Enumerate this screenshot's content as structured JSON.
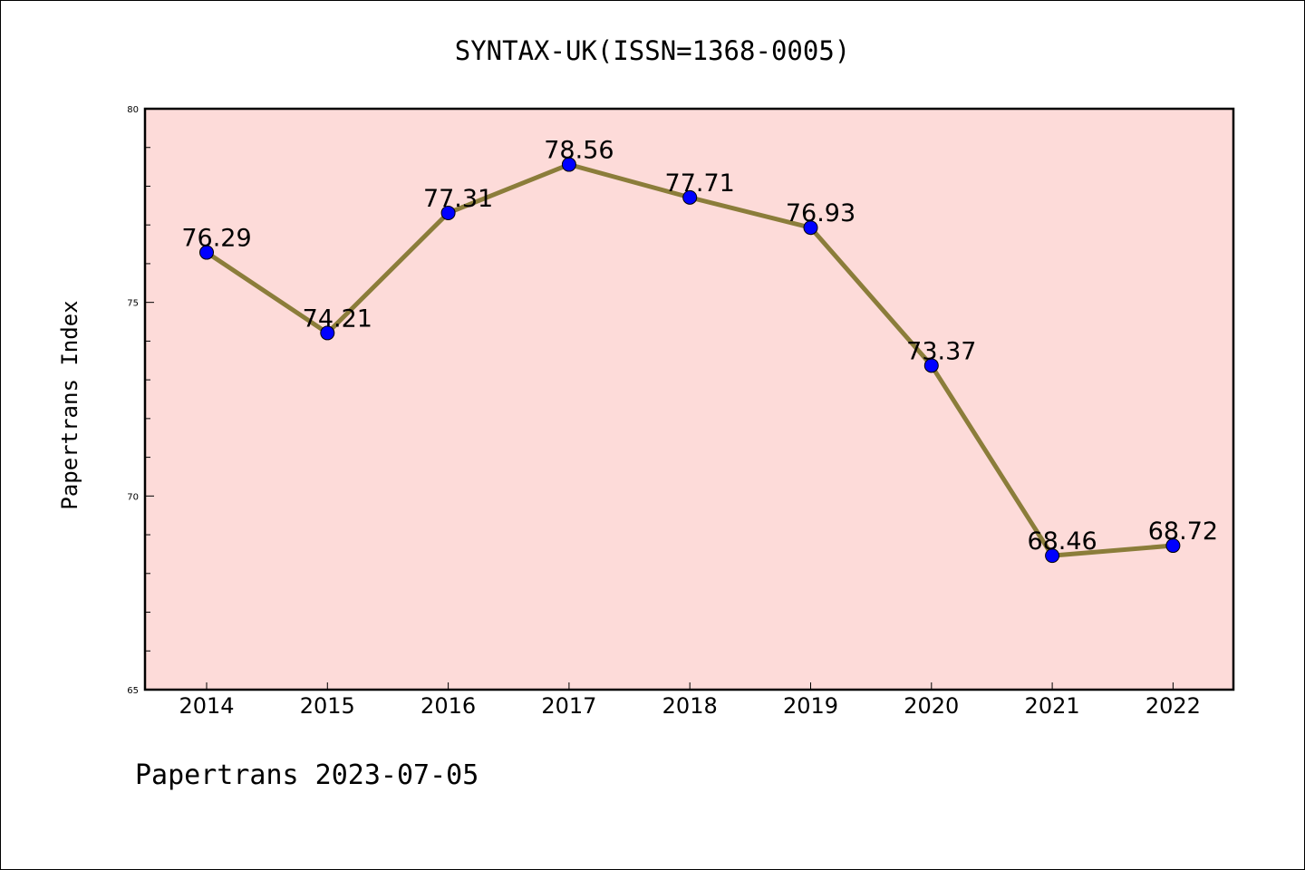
{
  "chart_data": {
    "type": "line",
    "title": "SYNTAX-UK(ISSN=1368-0005)",
    "xlabel": "",
    "ylabel": "Papertrans Index",
    "categories": [
      "2014",
      "2015",
      "2016",
      "2017",
      "2018",
      "2019",
      "2020",
      "2021",
      "2022"
    ],
    "values": [
      76.29,
      74.21,
      77.31,
      78.56,
      77.71,
      76.93,
      73.37,
      68.46,
      68.72
    ],
    "data_labels": [
      "76.29",
      "74.21",
      "77.31",
      "78.56",
      "77.71",
      "76.93",
      "73.37",
      "68.46",
      "68.72"
    ],
    "ylim": [
      65,
      80
    ],
    "yticks": [
      65,
      70,
      75,
      80
    ],
    "ytick_labels": [
      "65",
      "70",
      "75",
      "80"
    ],
    "y_minor_step": 1,
    "grid": false,
    "legend": "none",
    "colors": {
      "plot_background": "#fddbd9",
      "line": "#8b7d3a",
      "marker": "#0000ff",
      "axes": "#000000"
    }
  },
  "footer": {
    "text": "Papertrans 2023-07-05"
  }
}
